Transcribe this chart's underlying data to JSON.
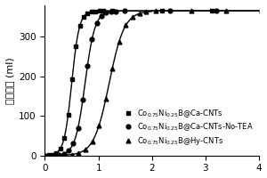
{
  "title": "",
  "xlabel": "",
  "ylabel": "氢气体积 (ml)",
  "xlim": [
    0,
    4
  ],
  "ylim": [
    0,
    380
  ],
  "yticks": [
    0,
    100,
    200,
    300
  ],
  "xticks": [
    0,
    1,
    2,
    3,
    4
  ],
  "plateau": 365,
  "series": [
    {
      "label": "Co$_{0.75}$Ni$_{0.25}$B@Ca-CNTs",
      "marker": "s",
      "color": "#000000",
      "x_start": 0.0,
      "x_inflect": 0.5,
      "x_end": 0.85
    },
    {
      "label": "Co$_{0.75}$Ni$_{0.25}$B@Ca-CNTs-No-TEA",
      "marker": "o",
      "color": "#000000",
      "x_start": 0.0,
      "x_inflect": 0.75,
      "x_end": 1.1
    },
    {
      "label": "Co$_{0.75}$Ni$_{0.25}$B@Hy-CNTs",
      "marker": "^",
      "color": "#000000",
      "x_start": 0.0,
      "x_inflect": 1.2,
      "x_end": 1.7
    }
  ],
  "background_color": "#ffffff",
  "legend_fontsize": 6.0,
  "axis_fontsize": 8,
  "tick_fontsize": 7.5
}
